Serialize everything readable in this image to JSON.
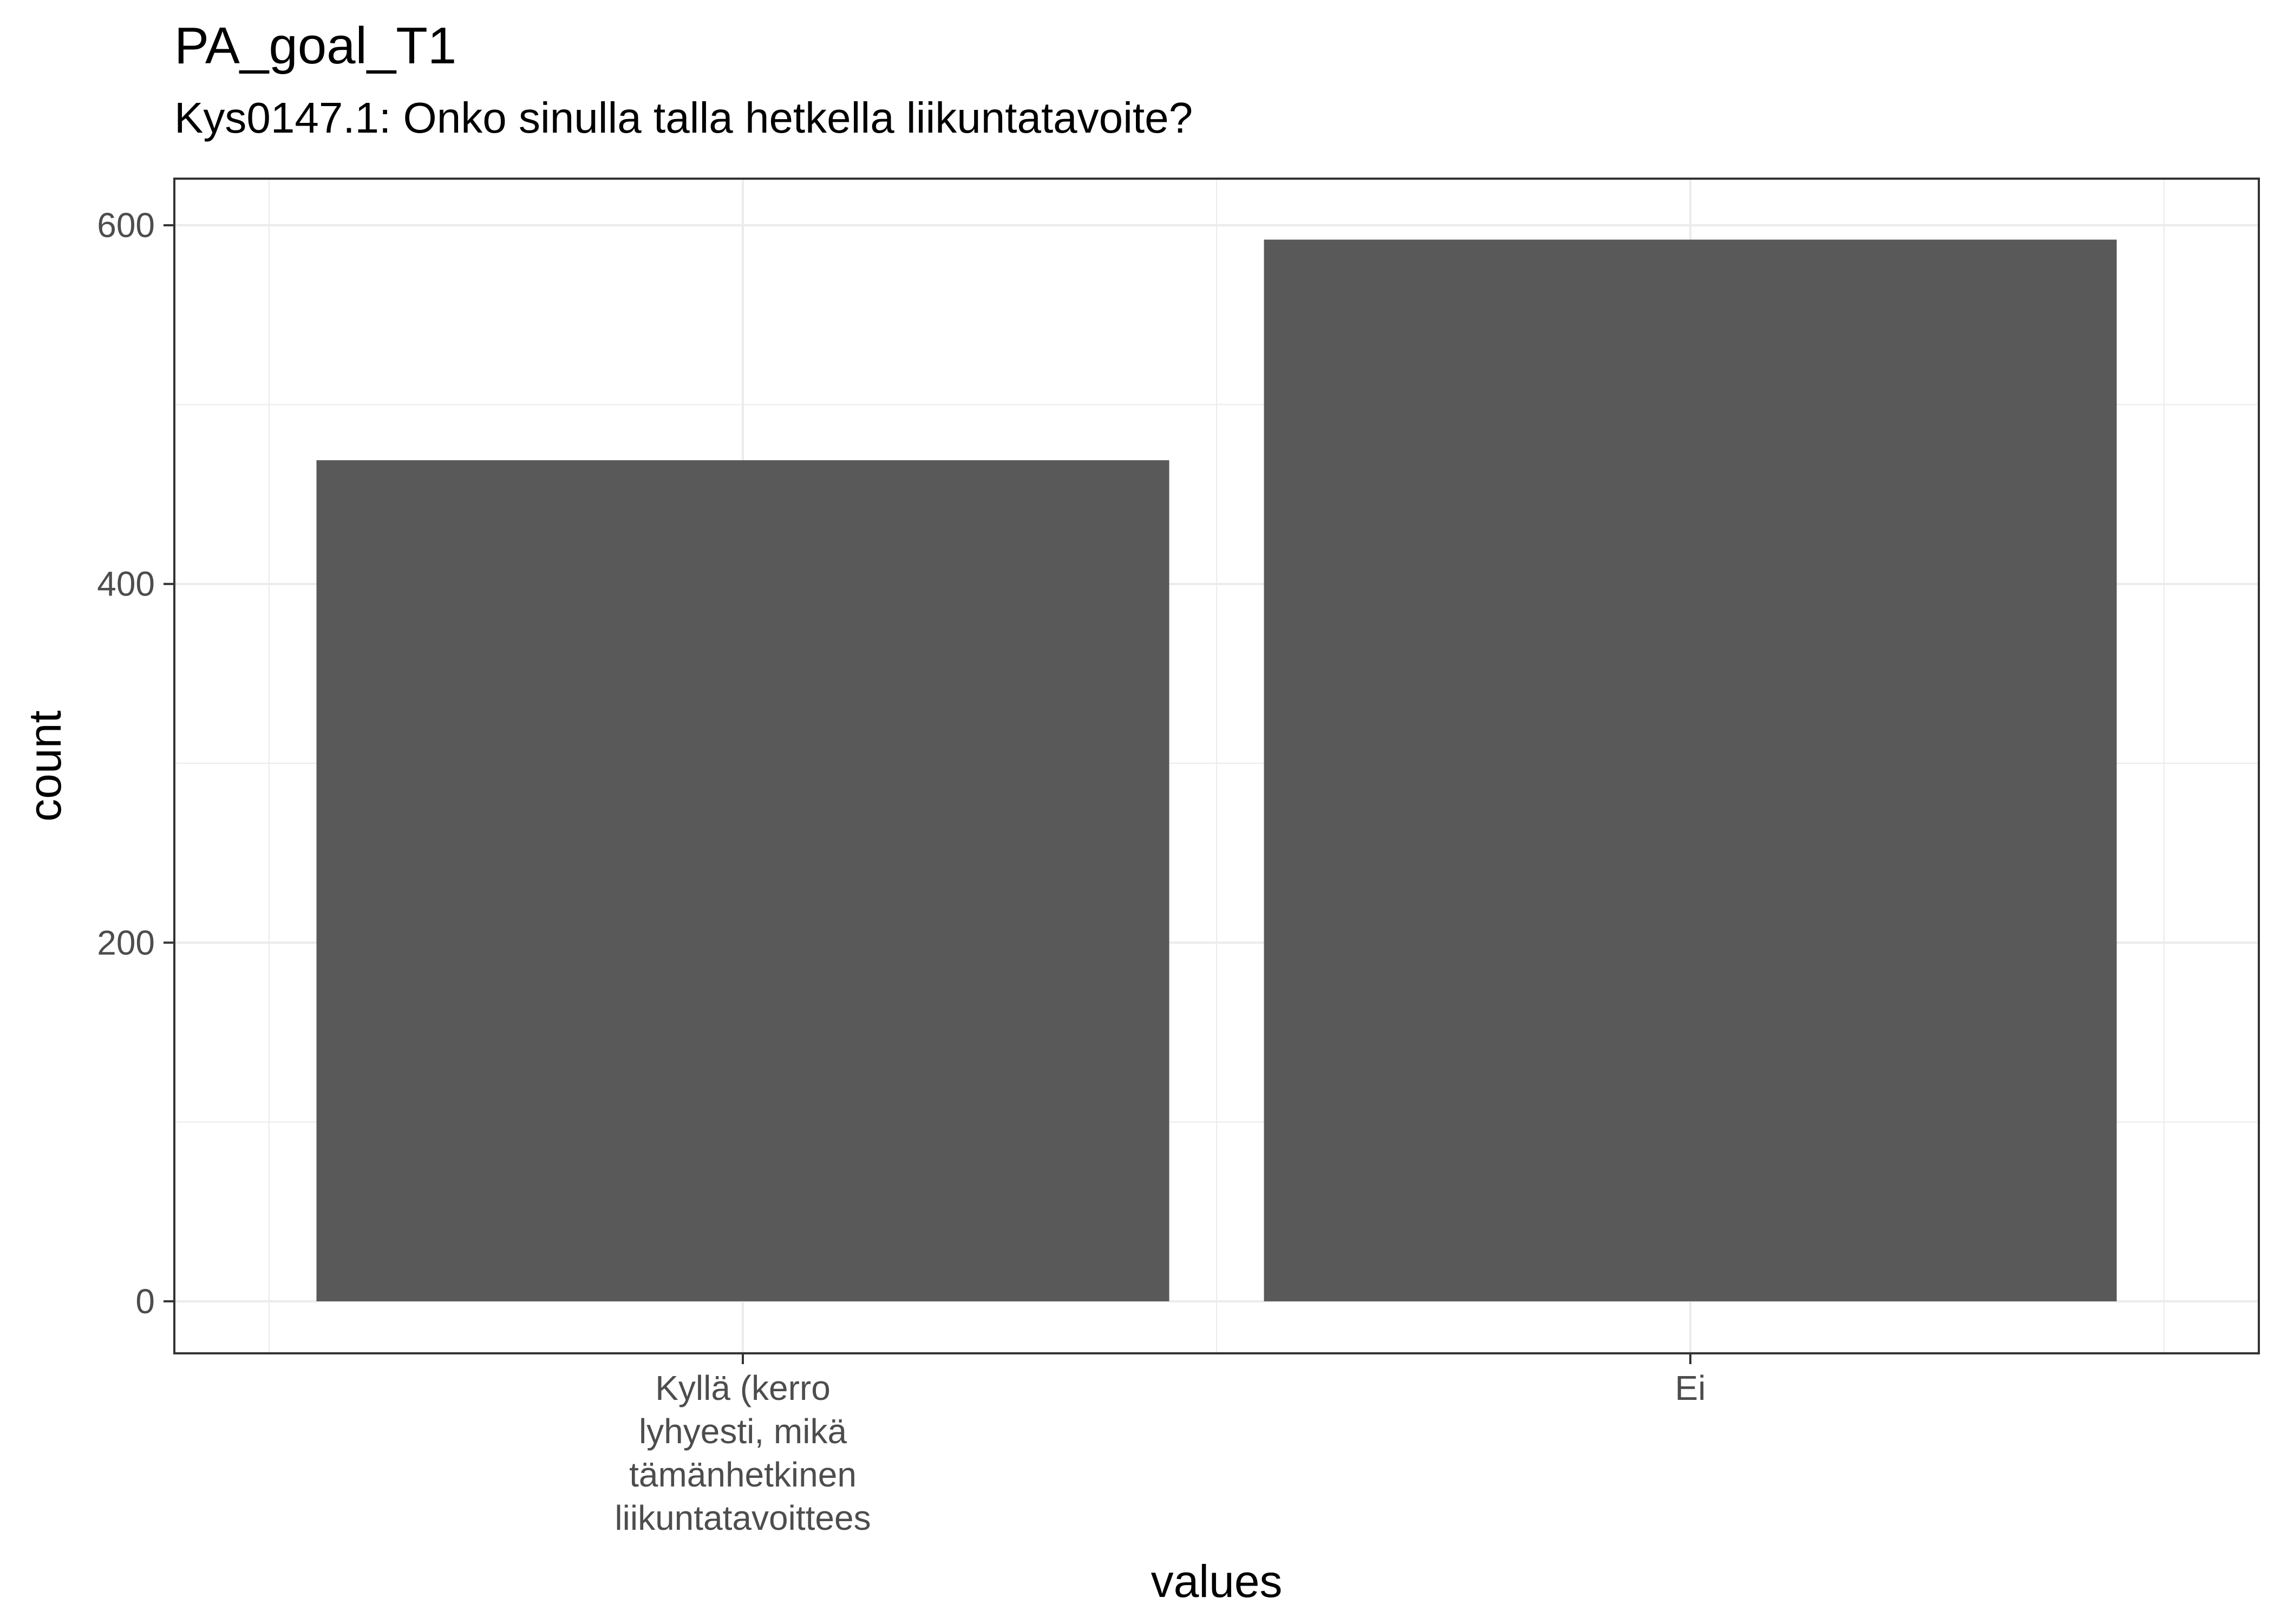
{
  "chart_data": {
    "type": "bar",
    "title": "PA_goal_T1",
    "subtitle": "Kys0147.1: Onko sinulla talla hetkella liikuntatavoite?",
    "xlabel": "values",
    "ylabel": "count",
    "categories": [
      [
        "Kyllä (kerro",
        "lyhyesti, mikä",
        "tämänhetkinen",
        "liikuntatavoittees"
      ],
      [
        "Ei"
      ]
    ],
    "values": [
      469,
      592
    ],
    "ylim": [
      -29,
      626
    ],
    "yticks": [
      0,
      200,
      400,
      600
    ],
    "grid": true,
    "bar_color": "#595959",
    "grid_color": "#ebebeb",
    "panel_border_color": "#333333"
  }
}
